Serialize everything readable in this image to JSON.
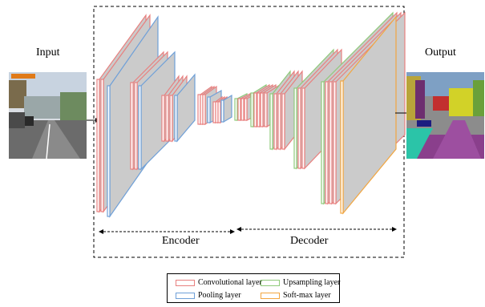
{
  "labels": {
    "input": "Input",
    "output": "Output",
    "encoder": "Encoder",
    "decoder": "Decoder"
  },
  "legend": [
    {
      "label": "Convolutional layer",
      "color": "#e8807f"
    },
    {
      "label": "Upsampling layer",
      "color": "#8fca7a"
    },
    {
      "label": "Pooling layer",
      "color": "#6fa0d8"
    },
    {
      "label": "Soft-max layer",
      "color": "#f2a640"
    }
  ],
  "colors": {
    "face": "#cbcbcb",
    "conv": "#e8807f",
    "pool": "#6fa0d8",
    "upsample": "#8fca7a",
    "softmax": "#f2a640"
  }
}
